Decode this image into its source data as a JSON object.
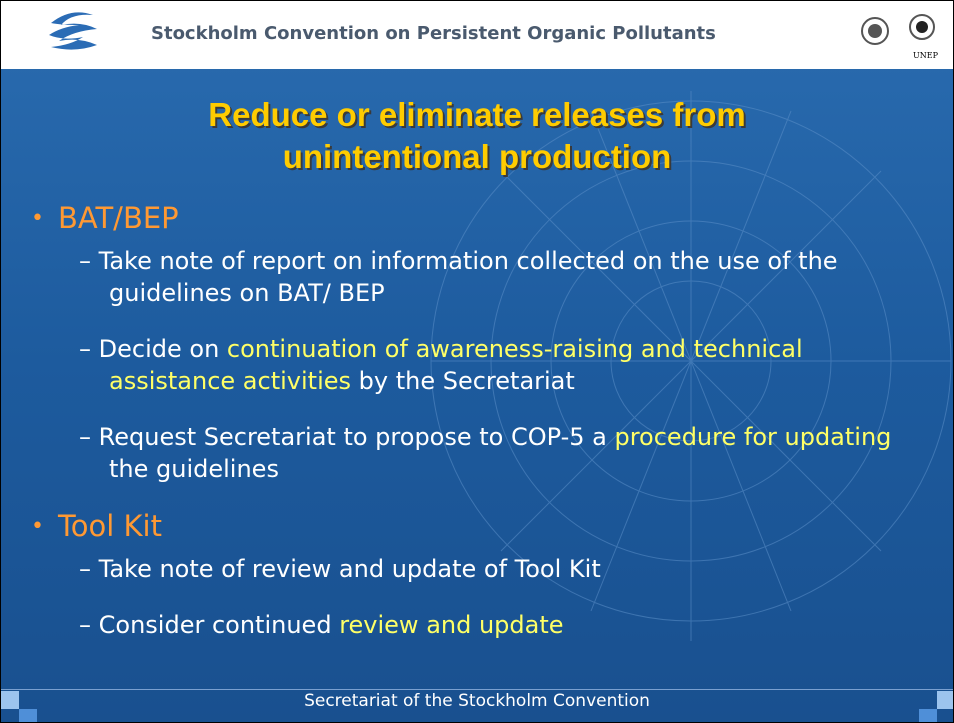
{
  "header": {
    "title": "Stockholm Convention on Persistent Organic Pollutants",
    "logo_text": "UNEP"
  },
  "slide": {
    "title_lines": [
      "Reduce or eliminate releases from",
      "unintentional production"
    ],
    "bullets": [
      {
        "label": "BAT/BEP",
        "items": [
          [
            {
              "text": "Take note of report on information collected on the use of the guidelines on BAT/ BEP",
              "highlight": false
            }
          ],
          [
            {
              "text": "Decide on ",
              "highlight": false
            },
            {
              "text": "continuation of awareness-raising and technical assistance activities",
              "highlight": true
            },
            {
              "text": " by the Secretariat",
              "highlight": false
            }
          ],
          [
            {
              "text": "Request Secretariat to propose to COP-5 a ",
              "highlight": false
            },
            {
              "text": "procedure for updating",
              "highlight": true
            },
            {
              "text": " the guidelines",
              "highlight": false
            }
          ]
        ]
      },
      {
        "label": "Tool Kit",
        "items": [
          [
            {
              "text": "Take note of review and update of Tool Kit",
              "highlight": false
            }
          ],
          [
            {
              "text": "Consider continued ",
              "highlight": false
            },
            {
              "text": "review and update",
              "highlight": true
            }
          ]
        ]
      }
    ]
  },
  "footer": {
    "text": "Secretariat of the Stockholm Convention"
  }
}
